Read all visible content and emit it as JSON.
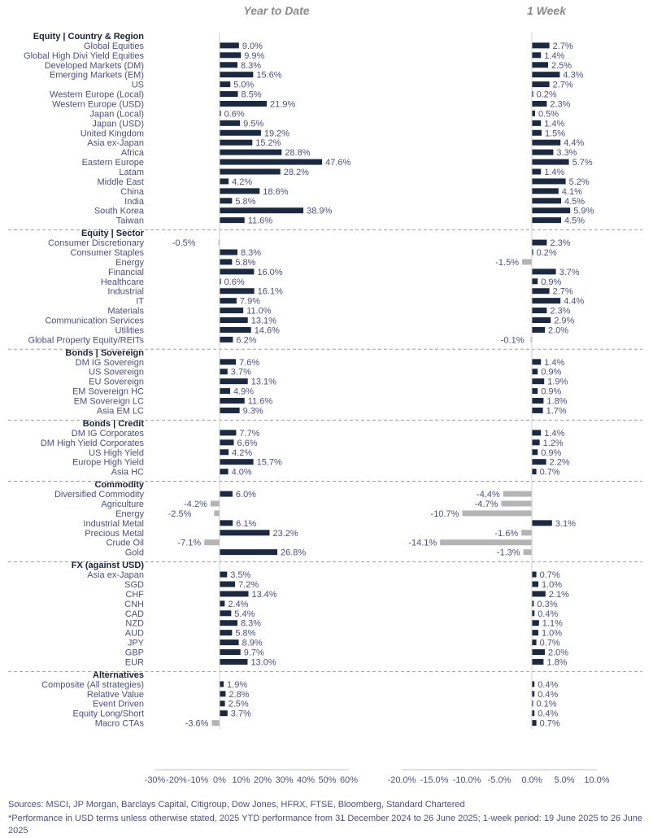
{
  "colors": {
    "positive": "#1b2a41",
    "negative": "#b4b4b4",
    "text": "#4a4f8c",
    "divider": "#a0a0a0"
  },
  "chart_data": [
    {
      "type": "bar",
      "title": "Year to Date",
      "orientation": "horizontal",
      "xlim": [
        -30,
        60
      ],
      "xticks": [
        "-30%",
        "-20%",
        "-10%",
        "0%",
        "10%",
        "20%",
        "30%",
        "40%",
        "50%",
        "60%"
      ],
      "sections": [
        {
          "name": "Equity | Country & Region",
          "categories": [
            "Global Equities",
            "Global High Divi Yield Equities",
            "Developed Markets (DM)",
            "Emerging Markets (EM)",
            "US",
            "Western Europe (Local)",
            "Western Europe (USD)",
            "Japan (Local)",
            "Japan (USD)",
            "United Kingdom",
            "Asia ex-Japan",
            "Africa",
            "Eastern Europe",
            "Latam",
            "Middle East",
            "China",
            "India",
            "South Korea",
            "Taiwan"
          ],
          "values": [
            9.0,
            9.9,
            8.3,
            15.6,
            5.0,
            8.5,
            21.9,
            0.6,
            9.5,
            19.2,
            15.2,
            28.8,
            47.6,
            28.2,
            4.2,
            18.6,
            5.8,
            38.9,
            11.6
          ]
        },
        {
          "name": "Equity | Sector",
          "categories": [
            "Consumer Discretionary",
            "Consumer Staples",
            "Energy",
            "Financial",
            "Healthcare",
            "Industrial",
            "IT",
            "Materials",
            "Communication Services",
            "Utilities",
            "Global Property Equity/REITs"
          ],
          "values": [
            -0.5,
            8.3,
            5.8,
            16.0,
            0.6,
            16.1,
            7.9,
            11.0,
            13.1,
            14.6,
            6.2
          ]
        },
        {
          "name": "Bonds | Sovereign",
          "categories": [
            "DM IG Sovereign",
            "US Sovereign",
            "EU Sovereign",
            "EM Sovereign HC",
            "EM Sovereign LC",
            "Asia EM LC"
          ],
          "values": [
            7.6,
            3.7,
            13.1,
            4.9,
            11.6,
            9.3
          ]
        },
        {
          "name": "Bonds | Credit",
          "categories": [
            "DM IG Corporates",
            "DM High Yield Corporates",
            "US High Yield",
            "Europe High Yield",
            "Asia HC"
          ],
          "values": [
            7.7,
            6.6,
            4.2,
            15.7,
            4.0
          ]
        },
        {
          "name": "Commodity",
          "categories": [
            "Diversified Commodity",
            "Agriculture",
            "Energy",
            "Industrial Metal",
            "Precious Metal",
            "Crude Oil",
            "Gold"
          ],
          "values": [
            6.0,
            -4.2,
            -2.5,
            6.1,
            23.2,
            -7.1,
            26.8
          ]
        },
        {
          "name": "FX (against USD)",
          "categories": [
            "Asia ex-Japan",
            "SGD",
            "CHF",
            "CNH",
            "CAD",
            "NZD",
            "AUD",
            "JPY",
            "GBP",
            "EUR"
          ],
          "values": [
            3.5,
            7.2,
            13.4,
            2.4,
            5.4,
            8.3,
            5.8,
            8.9,
            9.7,
            13.0
          ]
        },
        {
          "name": "Alternatives",
          "categories": [
            "Composite (All strategies)",
            "Relative Value",
            "Event Driven",
            "Equity Long/Short",
            "Macro CTAs"
          ],
          "values": [
            1.9,
            2.8,
            2.5,
            3.7,
            -3.6
          ]
        }
      ]
    },
    {
      "type": "bar",
      "title": "1 Week",
      "orientation": "horizontal",
      "xlim": [
        -20,
        10
      ],
      "xticks": [
        "-20.0%",
        "-15.0%",
        "-10.0%",
        "-5.0%",
        "0.0%",
        "5.0%",
        "10.0%"
      ],
      "sections": [
        {
          "name": "Equity | Country & Region",
          "values": [
            2.7,
            1.4,
            2.5,
            4.3,
            2.7,
            0.2,
            2.3,
            0.5,
            1.4,
            1.5,
            4.4,
            3.3,
            5.7,
            1.4,
            5.2,
            4.1,
            4.5,
            5.9,
            4.5
          ]
        },
        {
          "name": "Equity | Sector",
          "values": [
            2.3,
            0.2,
            -1.5,
            3.7,
            0.9,
            2.7,
            4.4,
            2.3,
            2.9,
            2.0,
            -0.1
          ]
        },
        {
          "name": "Bonds | Sovereign",
          "values": [
            1.4,
            0.9,
            1.9,
            0.9,
            1.8,
            1.7
          ]
        },
        {
          "name": "Bonds | Credit",
          "values": [
            1.4,
            1.2,
            0.9,
            2.2,
            0.7
          ]
        },
        {
          "name": "Commodity",
          "values": [
            -4.4,
            -4.7,
            -10.7,
            3.1,
            -1.6,
            -14.1,
            -1.3
          ]
        },
        {
          "name": "FX (against USD)",
          "values": [
            0.7,
            1.0,
            2.1,
            0.3,
            0.4,
            1.1,
            1.0,
            0.7,
            2.0,
            1.8
          ]
        },
        {
          "name": "Alternatives",
          "values": [
            0.4,
            0.4,
            0.1,
            0.4,
            0.7
          ]
        }
      ]
    }
  ],
  "footer": {
    "sources": "Sources: MSCI, JP Morgan, Barclays Capital, Citigroup, Dow Jones, HFRX, FTSE, Bloomberg, Standard Chartered",
    "note": "*Performance in USD terms unless otherwise stated, 2025 YTD performance from 31 December 2024 to 26 June 2025; 1-week period: 19 June 2025 to 26 June 2025"
  }
}
